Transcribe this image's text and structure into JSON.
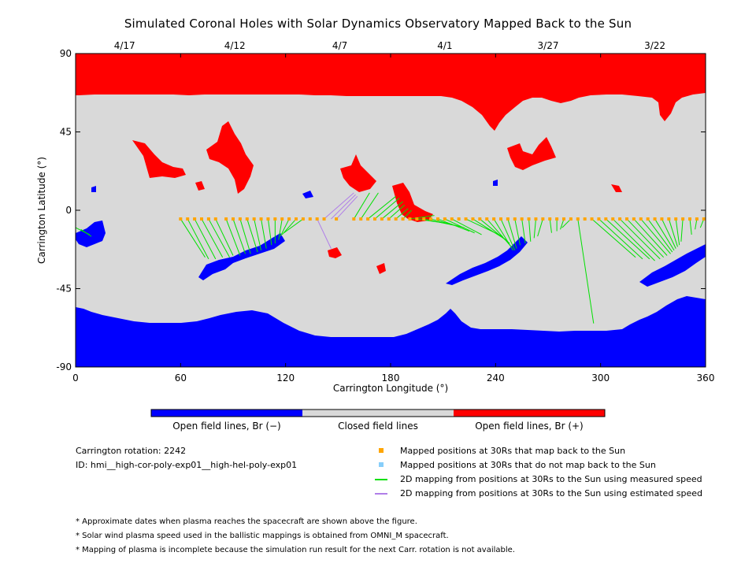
{
  "title": "Simulated Coronal Holes with Solar Dynamics Observatory Mapped Back to the Sun",
  "chart_data": {
    "type": "scatter",
    "xlabel": "Carrington Longitude (°)",
    "ylabel": "Carrington Latitude (°)",
    "xlim": [
      0,
      360
    ],
    "ylim": [
      -90,
      90
    ],
    "x_ticks": [
      0,
      60,
      120,
      180,
      240,
      300,
      360
    ],
    "y_ticks": [
      -90,
      -45,
      0,
      45,
      90
    ],
    "top_date_ticks": [
      {
        "label": "4/17",
        "lon": 28
      },
      {
        "label": "4/12",
        "lon": 91
      },
      {
        "label": "4/7",
        "lon": 151
      },
      {
        "label": "4/1",
        "lon": 211
      },
      {
        "label": "3/27",
        "lon": 270
      },
      {
        "label": "3/22",
        "lon": 331
      }
    ],
    "colors": {
      "open_negative": "#0000ff",
      "closed": "#d9d9d9",
      "open_positive": "#ff0000",
      "mapped_back": "#ffa500",
      "not_mapped_back": "#87cefa",
      "measured_speed": "#00e000",
      "estimated_speed": "#b07ee8"
    },
    "mapped_positions_lat": -5,
    "mapped_positions_lon": [
      60,
      64,
      68,
      72,
      76,
      80,
      86,
      90,
      94,
      98,
      102,
      106,
      110,
      114,
      118,
      122,
      126,
      130,
      134,
      138,
      142,
      149,
      159,
      163,
      167,
      171,
      175,
      179,
      183,
      187,
      191,
      195,
      199,
      203,
      207,
      211,
      215,
      219,
      223,
      227,
      231,
      235,
      239,
      243,
      247,
      251,
      255,
      259,
      263,
      267,
      271,
      275,
      279,
      283,
      287,
      291,
      295,
      299,
      303,
      307,
      311,
      315,
      319,
      323,
      327,
      331,
      335,
      339,
      343,
      347,
      351,
      355,
      359
    ],
    "measured_mapping_lines": [
      {
        "from": [
          60,
          -5
        ],
        "to": [
          74,
          -27
        ]
      },
      {
        "from": [
          64,
          -5
        ],
        "to": [
          76,
          -28
        ]
      },
      {
        "from": [
          68,
          -5
        ],
        "to": [
          80,
          -28
        ]
      },
      {
        "from": [
          72,
          -5
        ],
        "to": [
          84,
          -27
        ]
      },
      {
        "from": [
          76,
          -5
        ],
        "to": [
          88,
          -27
        ]
      },
      {
        "from": [
          80,
          -5
        ],
        "to": [
          90,
          -26
        ]
      },
      {
        "from": [
          86,
          -5
        ],
        "to": [
          94,
          -26
        ]
      },
      {
        "from": [
          90,
          -5
        ],
        "to": [
          97,
          -25
        ]
      },
      {
        "from": [
          94,
          -5
        ],
        "to": [
          100,
          -25
        ]
      },
      {
        "from": [
          98,
          -5
        ],
        "to": [
          104,
          -24
        ]
      },
      {
        "from": [
          102,
          -5
        ],
        "to": [
          106,
          -23
        ]
      },
      {
        "from": [
          106,
          -5
        ],
        "to": [
          109,
          -22
        ]
      },
      {
        "from": [
          110,
          -5
        ],
        "to": [
          112,
          -20
        ]
      },
      {
        "from": [
          114,
          -5
        ],
        "to": [
          114,
          -19
        ]
      },
      {
        "from": [
          118,
          -5
        ],
        "to": [
          116,
          -17
        ]
      },
      {
        "from": [
          122,
          -5
        ],
        "to": [
          117,
          -15
        ]
      },
      {
        "from": [
          126,
          -5
        ],
        "to": [
          118,
          -14
        ]
      },
      {
        "from": [
          130,
          -5
        ],
        "to": [
          119,
          -13
        ]
      },
      {
        "from": [
          0,
          -10
        ],
        "to": [
          8,
          -14
        ]
      },
      {
        "from": [
          3,
          -11
        ],
        "to": [
          9,
          -15
        ]
      },
      {
        "from": [
          159,
          -5
        ],
        "to": [
          168,
          10
        ]
      },
      {
        "from": [
          163,
          -5
        ],
        "to": [
          173,
          10
        ]
      },
      {
        "from": [
          167,
          -5
        ],
        "to": [
          183,
          8
        ]
      },
      {
        "from": [
          171,
          -5
        ],
        "to": [
          185,
          7
        ]
      },
      {
        "from": [
          175,
          -5
        ],
        "to": [
          187,
          5
        ]
      },
      {
        "from": [
          179,
          -5
        ],
        "to": [
          188,
          3
        ]
      },
      {
        "from": [
          183,
          -5
        ],
        "to": [
          190,
          1
        ]
      },
      {
        "from": [
          187,
          -5
        ],
        "to": [
          192,
          0
        ]
      },
      {
        "from": [
          191,
          -5
        ],
        "to": [
          205,
          -3
        ]
      },
      {
        "from": [
          195,
          -5
        ],
        "to": [
          215,
          -8
        ]
      },
      {
        "from": [
          199,
          -5
        ],
        "to": [
          218,
          -9
        ]
      },
      {
        "from": [
          203,
          -5
        ],
        "to": [
          222,
          -10
        ]
      },
      {
        "from": [
          207,
          -5
        ],
        "to": [
          225,
          -12
        ]
      },
      {
        "from": [
          211,
          -5
        ],
        "to": [
          228,
          -13
        ]
      },
      {
        "from": [
          215,
          -5
        ],
        "to": [
          232,
          -14
        ]
      },
      {
        "from": [
          223,
          -5
        ],
        "to": [
          244,
          -15
        ]
      },
      {
        "from": [
          227,
          -5
        ],
        "to": [
          246,
          -17
        ]
      },
      {
        "from": [
          231,
          -5
        ],
        "to": [
          248,
          -19
        ]
      },
      {
        "from": [
          235,
          -5
        ],
        "to": [
          249,
          -21
        ]
      },
      {
        "from": [
          239,
          -5
        ],
        "to": [
          250,
          -23
        ]
      },
      {
        "from": [
          243,
          -5
        ],
        "to": [
          251,
          -23
        ]
      },
      {
        "from": [
          247,
          -5
        ],
        "to": [
          252,
          -22
        ]
      },
      {
        "from": [
          251,
          -5
        ],
        "to": [
          254,
          -20
        ]
      },
      {
        "from": [
          255,
          -5
        ],
        "to": [
          257,
          -19
        ]
      },
      {
        "from": [
          259,
          -5
        ],
        "to": [
          260,
          -18
        ]
      },
      {
        "from": [
          263,
          -5
        ],
        "to": [
          262,
          -16
        ]
      },
      {
        "from": [
          267,
          -5
        ],
        "to": [
          264,
          -15
        ]
      },
      {
        "from": [
          271,
          -5
        ],
        "to": [
          272,
          -13
        ]
      },
      {
        "from": [
          275,
          -5
        ],
        "to": [
          275,
          -12
        ]
      },
      {
        "from": [
          279,
          -5
        ],
        "to": [
          277,
          -11
        ]
      },
      {
        "from": [
          283,
          -5
        ],
        "to": [
          278,
          -10
        ]
      },
      {
        "from": [
          287,
          -5
        ],
        "to": [
          296,
          -65
        ]
      },
      {
        "from": [
          295,
          -5
        ],
        "to": [
          320,
          -27
        ]
      },
      {
        "from": [
          299,
          -5
        ],
        "to": [
          324,
          -28
        ]
      },
      {
        "from": [
          303,
          -5
        ],
        "to": [
          328,
          -28
        ]
      },
      {
        "from": [
          307,
          -5
        ],
        "to": [
          331,
          -29
        ]
      },
      {
        "from": [
          311,
          -5
        ],
        "to": [
          334,
          -28
        ]
      },
      {
        "from": [
          315,
          -5
        ],
        "to": [
          336,
          -27
        ]
      },
      {
        "from": [
          319,
          -5
        ],
        "to": [
          338,
          -26
        ]
      },
      {
        "from": [
          323,
          -5
        ],
        "to": [
          340,
          -25
        ]
      },
      {
        "from": [
          327,
          -5
        ],
        "to": [
          341,
          -24
        ]
      },
      {
        "from": [
          331,
          -5
        ],
        "to": [
          342,
          -23
        ]
      },
      {
        "from": [
          335,
          -5
        ],
        "to": [
          343,
          -22
        ]
      },
      {
        "from": [
          339,
          -5
        ],
        "to": [
          344,
          -21
        ]
      },
      {
        "from": [
          343,
          -5
        ],
        "to": [
          345,
          -20
        ]
      },
      {
        "from": [
          347,
          -5
        ],
        "to": [
          346,
          -18
        ]
      },
      {
        "from": [
          351,
          -5
        ],
        "to": [
          352,
          -14
        ]
      },
      {
        "from": [
          355,
          -5
        ],
        "to": [
          354,
          -11
        ]
      },
      {
        "from": [
          359,
          -5
        ],
        "to": [
          357,
          -10
        ]
      }
    ],
    "estimated_mapping_lines": [
      {
        "from": [
          138,
          -5
        ],
        "to": [
          146,
          -22
        ]
      },
      {
        "from": [
          142,
          -5
        ],
        "to": [
          159,
          10
        ]
      },
      {
        "from": [
          146,
          -5
        ],
        "to": [
          160,
          9
        ]
      },
      {
        "from": [
          149,
          -5
        ],
        "to": [
          161,
          8
        ]
      }
    ]
  },
  "colorbar": {
    "labels": [
      "Open field lines, Br (−)",
      "Closed field lines",
      "Open field lines, Br (+)"
    ]
  },
  "info": {
    "rotation": "Carrington rotation: 2242",
    "id": "ID: hmi__high-cor-poly-exp01__high-hel-poly-exp01"
  },
  "legend": [
    {
      "label": "Mapped positions at 30Rs that map back to the Sun",
      "marker": "square",
      "color_key": "mapped_back"
    },
    {
      "label": "Mapped positions at 30Rs that do not map back to the Sun",
      "marker": "square",
      "color_key": "not_mapped_back"
    },
    {
      "label": "2D mapping from positions at 30Rs to the Sun using measured speed",
      "marker": "line",
      "color_key": "measured_speed"
    },
    {
      "label": "2D mapping from positions at 30Rs to the Sun using estimated speed",
      "marker": "line",
      "color_key": "estimated_speed"
    }
  ],
  "notes": [
    "* Approximate dates when plasma reaches the spacecraft are shown above the figure.",
    "* Solar wind plasma speed used in the ballistic mappings is obtained from OMNI_M spacecraft.",
    "* Mapping of plasma is incomplete because the simulation run result for the next Carr. rotation is not available."
  ]
}
